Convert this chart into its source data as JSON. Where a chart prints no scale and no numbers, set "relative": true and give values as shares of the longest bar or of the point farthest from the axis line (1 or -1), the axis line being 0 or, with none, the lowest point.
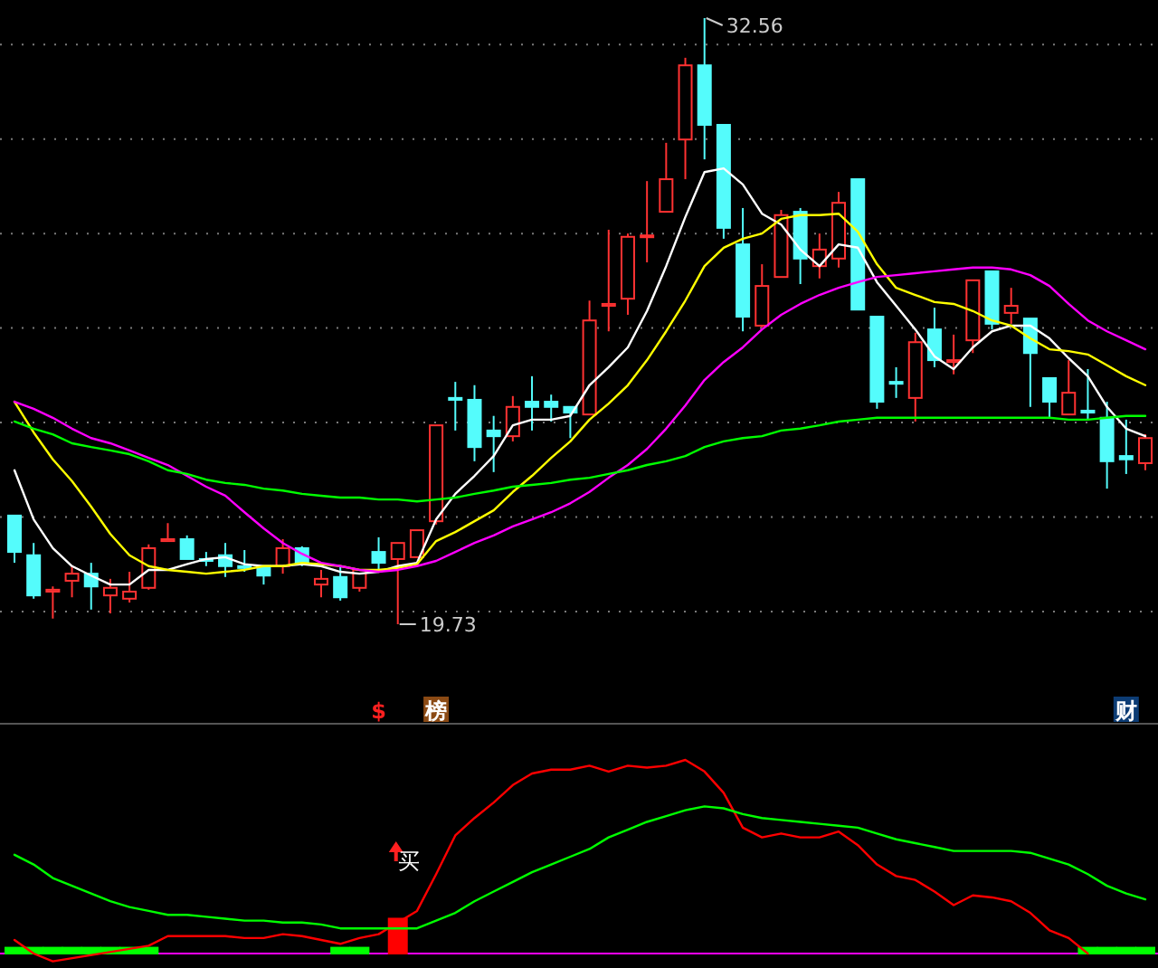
{
  "chart_data": [
    {
      "type": "candlestick",
      "categories": [
        null,
        null,
        null,
        null,
        null,
        null,
        null,
        null,
        null,
        null,
        null,
        null,
        null,
        null,
        null,
        null,
        null,
        null,
        null,
        null,
        null,
        null,
        null,
        null,
        null,
        null,
        null,
        null,
        null,
        null,
        null,
        null,
        null,
        null,
        null,
        null,
        null,
        null,
        null,
        null,
        null,
        null,
        null,
        null,
        null,
        null,
        null,
        null,
        null,
        null,
        null,
        null,
        null,
        null,
        null,
        null,
        null,
        null,
        null,
        null
      ],
      "ohlc": [
        [
          22.03,
          22.03,
          21.03,
          21.26
        ],
        [
          21.19,
          21.45,
          20.27,
          20.34
        ],
        [
          20.42,
          20.53,
          19.85,
          20.46
        ],
        [
          20.65,
          20.96,
          20.3,
          20.8
        ],
        [
          20.8,
          21.03,
          20.04,
          20.53
        ],
        [
          20.34,
          20.69,
          19.96,
          20.5
        ],
        [
          20.27,
          20.84,
          20.19,
          20.42
        ],
        [
          20.5,
          21.42,
          20.46,
          21.34
        ],
        [
          21.49,
          21.87,
          21.49,
          21.53
        ],
        [
          21.53,
          21.61,
          21.11,
          21.11
        ],
        [
          21.11,
          21.26,
          20.96,
          21.07
        ],
        [
          21.19,
          21.45,
          20.73,
          20.96
        ],
        [
          20.96,
          21.3,
          20.84,
          20.92
        ],
        [
          20.96,
          20.96,
          20.57,
          20.76
        ],
        [
          20.96,
          21.53,
          20.8,
          21.34
        ],
        [
          21.34,
          21.38,
          20.96,
          21.03
        ],
        [
          20.57,
          20.88,
          20.3,
          20.69
        ],
        [
          20.73,
          20.96,
          20.23,
          20.3
        ],
        [
          20.5,
          20.88,
          20.42,
          20.88
        ],
        [
          21.26,
          21.57,
          20.88,
          21.03
        ],
        [
          21.11,
          21.45,
          19.73,
          21.45
        ],
        [
          21.15,
          21.72,
          21.15,
          21.72
        ],
        [
          21.91,
          23.94,
          21.84,
          23.94
        ],
        [
          24.52,
          24.86,
          23.83,
          24.48
        ],
        [
          24.48,
          24.79,
          23.18,
          23.48
        ],
        [
          23.83,
          24.14,
          22.95,
          23.71
        ],
        [
          23.71,
          24.56,
          23.6,
          24.33
        ],
        [
          24.44,
          24.98,
          23.83,
          24.33
        ],
        [
          24.44,
          24.59,
          24.02,
          24.33
        ],
        [
          24.33,
          24.33,
          23.67,
          24.21
        ],
        [
          24.17,
          26.58,
          24.17,
          26.16
        ],
        [
          26.47,
          28.08,
          25.93,
          26.51
        ],
        [
          26.62,
          28.0,
          26.28,
          27.93
        ],
        [
          27.93,
          29.11,
          27.39,
          27.96
        ],
        [
          28.46,
          29.92,
          28.46,
          29.15
        ],
        [
          29.99,
          31.72,
          29.15,
          31.56
        ],
        [
          31.56,
          32.56,
          29.57,
          30.3
        ],
        [
          30.3,
          30.3,
          27.89,
          28.12
        ],
        [
          27.77,
          28.54,
          25.93,
          26.24
        ],
        [
          26.05,
          27.35,
          26.01,
          26.89
        ],
        [
          27.08,
          28.5,
          27.08,
          28.39
        ],
        [
          28.46,
          28.54,
          26.93,
          27.47
        ],
        [
          27.31,
          28.0,
          27.05,
          27.66
        ],
        [
          27.47,
          28.88,
          27.28,
          28.65
        ],
        [
          29.15,
          29.15,
          26.39,
          26.39
        ],
        [
          26.24,
          26.24,
          24.29,
          24.44
        ],
        [
          24.86,
          25.17,
          24.52,
          24.82
        ],
        [
          24.52,
          25.9,
          24.02,
          25.7
        ],
        [
          25.97,
          26.43,
          25.17,
          25.32
        ],
        [
          25.28,
          25.86,
          25.02,
          25.32
        ],
        [
          25.74,
          27.01,
          25.47,
          27.01
        ],
        [
          27.2,
          27.2,
          25.97,
          26.09
        ],
        [
          26.32,
          26.85,
          26.09,
          26.47
        ],
        [
          26.2,
          26.2,
          24.33,
          25.47
        ],
        [
          24.94,
          24.94,
          24.1,
          24.44
        ],
        [
          24.17,
          25.32,
          24.17,
          24.63
        ],
        [
          24.25,
          25.13,
          24.06,
          24.21
        ],
        [
          24.1,
          24.44,
          22.6,
          23.18
        ],
        [
          23.29,
          24.06,
          22.91,
          23.22
        ],
        [
          23.14,
          23.75,
          22.99,
          23.67
        ]
      ],
      "colors": [
        "#54fcfc",
        "#54fcfc",
        "#ff3232",
        "#ff3232",
        "#54fcfc",
        "#ff3232",
        "#ff3232",
        "#ff3232",
        "#ff3232",
        "#54fcfc",
        "#54fcfc",
        "#54fcfc",
        "#54fcfc",
        "#54fcfc",
        "#ff3232",
        "#54fcfc",
        "#ff3232",
        "#54fcfc",
        "#ff3232",
        "#54fcfc",
        "#ff3232",
        "#ff3232",
        "#ff3232",
        "#54fcfc",
        "#54fcfc",
        "#54fcfc",
        "#ff3232",
        "#54fcfc",
        "#54fcfc",
        "#54fcfc",
        "#ff3232",
        "#ff3232",
        "#ff3232",
        "#ff3232",
        "#ff3232",
        "#ff3232",
        "#54fcfc",
        "#54fcfc",
        "#54fcfc",
        "#ff3232",
        "#ff3232",
        "#54fcfc",
        "#ff3232",
        "#ff3232",
        "#54fcfc",
        "#54fcfc",
        "#54fcfc",
        "#ff3232",
        "#54fcfc",
        "#ff3232",
        "#ff3232",
        "#54fcfc",
        "#ff3232",
        "#54fcfc",
        "#54fcfc",
        "#ff3232",
        "#54fcfc",
        "#54fcfc",
        "#54fcfc",
        "#ff3232"
      ],
      "series": [
        {
          "type": "line",
          "color": "#ffffff",
          "values": [
            22.99,
            21.95,
            21.34,
            20.96,
            20.76,
            20.57,
            20.57,
            20.88,
            20.88,
            21.0,
            21.11,
            21.15,
            21.0,
            20.96,
            20.96,
            21.0,
            20.96,
            20.84,
            20.8,
            20.84,
            20.96,
            21.03,
            21.95,
            22.49,
            22.87,
            23.29,
            23.94,
            24.06,
            24.06,
            24.14,
            24.79,
            25.17,
            25.59,
            26.36,
            27.31,
            28.35,
            29.3,
            29.38,
            29.04,
            28.42,
            28.19,
            27.66,
            27.31,
            27.77,
            27.7,
            26.97,
            26.47,
            25.97,
            25.4,
            25.13,
            25.59,
            25.93,
            26.05,
            26.05,
            25.78,
            25.36,
            24.98,
            24.33,
            23.87,
            23.71
          ]
        },
        {
          "type": "line",
          "color": "#ffff00",
          "values": [
            24.44,
            23.79,
            23.22,
            22.76,
            22.22,
            21.64,
            21.19,
            20.96,
            20.88,
            20.84,
            20.8,
            20.84,
            20.88,
            20.96,
            20.96,
            21.03,
            21.0,
            20.96,
            20.88,
            20.88,
            20.92,
            21.0,
            21.49,
            21.68,
            21.91,
            22.14,
            22.53,
            22.87,
            23.25,
            23.6,
            24.06,
            24.4,
            24.79,
            25.32,
            25.93,
            26.58,
            27.31,
            27.7,
            27.89,
            28.0,
            28.31,
            28.39,
            28.39,
            28.42,
            28.04,
            27.35,
            26.85,
            26.7,
            26.55,
            26.51,
            26.36,
            26.16,
            26.05,
            25.78,
            25.55,
            25.51,
            25.44,
            25.21,
            24.98,
            24.79
          ]
        },
        {
          "type": "line",
          "color": "#ff00ff",
          "values": [
            24.44,
            24.29,
            24.1,
            23.87,
            23.67,
            23.56,
            23.41,
            23.25,
            23.1,
            22.87,
            22.64,
            22.45,
            22.1,
            21.76,
            21.45,
            21.22,
            21.03,
            20.96,
            20.88,
            20.84,
            20.88,
            20.96,
            21.07,
            21.26,
            21.45,
            21.61,
            21.8,
            21.95,
            22.1,
            22.29,
            22.53,
            22.83,
            23.1,
            23.44,
            23.87,
            24.36,
            24.9,
            25.28,
            25.59,
            25.97,
            26.28,
            26.51,
            26.7,
            26.85,
            26.97,
            27.08,
            27.12,
            27.16,
            27.2,
            27.24,
            27.28,
            27.28,
            27.24,
            27.12,
            26.89,
            26.51,
            26.16,
            25.93,
            25.74,
            25.55
          ]
        },
        {
          "type": "line",
          "color": "#00ff00",
          "values": [
            24.02,
            23.87,
            23.75,
            23.56,
            23.48,
            23.41,
            23.33,
            23.18,
            22.99,
            22.91,
            22.79,
            22.72,
            22.68,
            22.6,
            22.56,
            22.49,
            22.45,
            22.41,
            22.41,
            22.37,
            22.37,
            22.33,
            22.37,
            22.41,
            22.49,
            22.56,
            22.64,
            22.68,
            22.72,
            22.79,
            22.83,
            22.91,
            22.99,
            23.1,
            23.18,
            23.29,
            23.48,
            23.6,
            23.67,
            23.71,
            23.83,
            23.87,
            23.94,
            24.02,
            24.06,
            24.1,
            24.1,
            24.1,
            24.1,
            24.1,
            24.1,
            24.1,
            24.1,
            24.1,
            24.1,
            24.06,
            24.06,
            24.1,
            24.14,
            24.14
          ]
        }
      ],
      "yticks": [
        {
          "value": 20,
          "label": null
        },
        {
          "value": 22,
          "label": null
        },
        {
          "value": 24,
          "label": null
        },
        {
          "value": 26,
          "label": null
        },
        {
          "value": 28,
          "label": null
        },
        {
          "value": 30,
          "label": null
        },
        {
          "value": 32,
          "label": null
        }
      ],
      "grid": "y",
      "annotations": [
        "32.56",
        "19.73"
      ]
    },
    {
      "type": "line",
      "relative": true,
      "categories": [
        null,
        null,
        null,
        null,
        null,
        null,
        null,
        null,
        null,
        null,
        null,
        null,
        null,
        null,
        null,
        null,
        null,
        null,
        null,
        null,
        null,
        null,
        null,
        null,
        null,
        null,
        null,
        null,
        null,
        null,
        null,
        null,
        null,
        null,
        null,
        null,
        null,
        null,
        null,
        null,
        null,
        null,
        null,
        null,
        null,
        null,
        null,
        null,
        null,
        null,
        null,
        null,
        null,
        null,
        null,
        null,
        null,
        null,
        null,
        null
      ],
      "series": [
        {
          "type": "bar",
          "color": "#00ff00",
          "values": [
            0.03,
            0.03,
            0.03,
            0.03,
            0.03,
            0.03,
            0.03,
            0.03,
            null,
            null,
            null,
            null,
            null,
            null,
            null,
            null,
            null,
            0.03,
            0.03,
            null,
            null,
            null,
            null,
            null,
            null,
            null,
            null,
            null,
            null,
            null,
            null,
            null,
            null,
            null,
            null,
            null,
            null,
            null,
            null,
            null,
            null,
            null,
            null,
            null,
            null,
            null,
            null,
            null,
            null,
            null,
            null,
            null,
            null,
            null,
            null,
            null,
            0.03,
            0.03,
            0.03,
            0.03
          ]
        },
        {
          "type": "bar",
          "color": "#ff0000",
          "values": [
            null,
            null,
            null,
            null,
            null,
            null,
            null,
            null,
            null,
            null,
            null,
            null,
            null,
            null,
            null,
            null,
            null,
            null,
            null,
            null,
            0.18,
            null,
            null,
            null,
            null,
            null,
            null,
            null,
            null,
            null,
            null,
            null,
            null,
            null,
            null,
            null,
            null,
            null,
            null,
            null,
            null,
            null,
            null,
            null,
            null,
            null,
            null,
            null,
            null,
            null,
            null,
            null,
            null,
            null,
            null,
            null,
            null,
            null,
            null,
            null
          ]
        },
        {
          "type": "line",
          "color": "#ff0000",
          "values": [
            0.07,
            0.0,
            -0.04,
            null,
            null,
            null,
            null,
            0.04,
            0.09,
            0.09,
            0.09,
            0.09,
            0.08,
            0.08,
            0.1,
            0.09,
            0.07,
            0.05,
            0.08,
            0.1,
            0.16,
            0.22,
            0.41,
            0.61,
            0.7,
            0.78,
            0.87,
            0.93,
            0.95,
            0.95,
            0.97,
            0.94,
            0.97,
            0.96,
            0.97,
            1.0,
            0.94,
            0.83,
            0.65,
            0.6,
            0.62,
            0.6,
            0.6,
            0.63,
            0.56,
            0.46,
            0.4,
            0.38,
            0.32,
            0.25,
            0.3,
            0.29,
            0.27,
            0.21,
            0.12,
            0.08,
            0.0,
            null,
            null,
            null
          ]
        },
        {
          "type": "line",
          "color": "#00ff00",
          "values": [
            0.51,
            0.46,
            0.39,
            0.35,
            0.31,
            0.27,
            0.24,
            0.22,
            0.2,
            0.2,
            0.19,
            0.18,
            0.17,
            0.17,
            0.16,
            0.16,
            0.15,
            0.13,
            0.13,
            0.13,
            0.13,
            0.13,
            0.17,
            0.21,
            0.27,
            0.32,
            0.37,
            0.42,
            0.46,
            0.5,
            0.54,
            0.6,
            0.64,
            0.68,
            0.71,
            0.74,
            0.76,
            0.75,
            0.72,
            0.7,
            0.69,
            0.68,
            0.67,
            0.66,
            0.65,
            0.62,
            0.59,
            0.57,
            0.55,
            0.53,
            0.53,
            0.53,
            0.53,
            0.52,
            0.49,
            0.46,
            0.41,
            0.35,
            0.31,
            0.28
          ]
        }
      ],
      "ref_lines": [
        {
          "axis": "y",
          "value": 0,
          "color": "#ff00ff"
        }
      ],
      "annotations": [
        "$",
        "榜",
        "买",
        "财"
      ]
    }
  ]
}
